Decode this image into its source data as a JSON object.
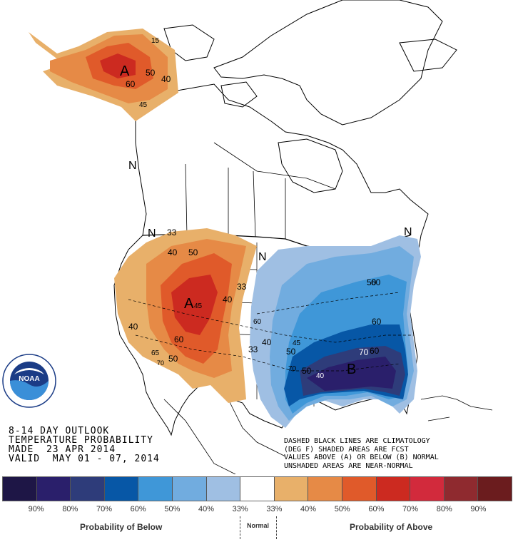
{
  "map": {
    "labels_above": [
      {
        "text": "A",
        "region": "alaska"
      },
      {
        "text": "A",
        "region": "southwest"
      }
    ],
    "labels_below": [
      {
        "text": "B",
        "region": "southeast"
      }
    ],
    "labels_normal": [
      "N",
      "N",
      "N",
      "N"
    ],
    "contour_labels": [
      "15",
      "50",
      "40",
      "60",
      "45",
      "33",
      "40",
      "50",
      "40",
      "45",
      "33",
      "60",
      "40",
      "60",
      "65",
      "50",
      "70",
      "33",
      "60",
      "40",
      "45",
      "50",
      "70",
      "60",
      "50",
      "70",
      "40",
      "60",
      "50"
    ]
  },
  "info": {
    "line1": "8-14 DAY OUTLOOK",
    "line2": "TEMPERATURE PROBABILITY",
    "line3": "MADE  23 APR 2014",
    "line4": "VALID  MAY 01 - 07, 2014"
  },
  "note": {
    "line1": "DASHED BLACK LINES ARE CLIMATOLOGY",
    "line2": "(DEG F) SHADED AREAS ARE FCST",
    "line3": "VALUES ABOVE (A) OR BELOW (B) NORMAL",
    "line4": "UNSHADED AREAS ARE NEAR-NORMAL"
  },
  "logo": {
    "text": "NOAA",
    "ring_text": "NATIONAL OCEANIC AND ATMOSPHERIC ADMINISTRATION · U.S. DEPARTMENT OF COMMERCE"
  },
  "legend": {
    "colors": [
      "#1e1646",
      "#2a1f6b",
      "#2e3c7a",
      "#0757a6",
      "#3f97d8",
      "#71acdf",
      "#9fbfe3",
      "#ffffff",
      "#e8b06a",
      "#e68a46",
      "#e05a2a",
      "#cc2a20",
      "#d22a3c",
      "#8f2a2f",
      "#6b1c1e"
    ],
    "percents": [
      "90%",
      "80%",
      "70%",
      "60%",
      "50%",
      "40%",
      "33%",
      "33%",
      "40%",
      "50%",
      "60%",
      "70%",
      "80%",
      "90%"
    ],
    "below_label": "Probability of Below",
    "normal_label": "Normal",
    "above_label": "Probability of Above"
  }
}
